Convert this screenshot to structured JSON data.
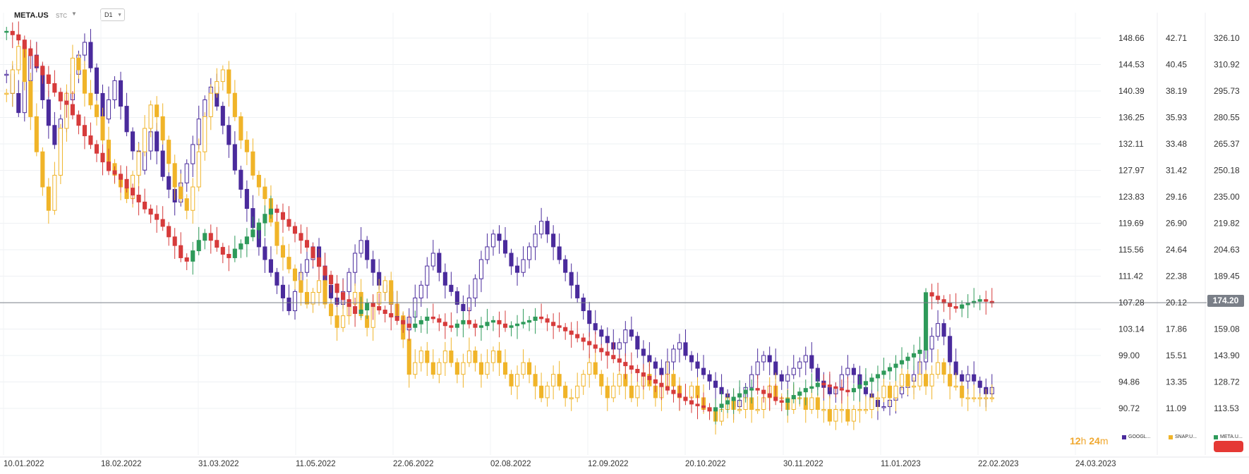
{
  "header": {
    "symbol": "META.US",
    "symbol_type": "STC",
    "timeframe": "D1"
  },
  "chart_data": {
    "type": "candlestick",
    "x_ticks": [
      "10.01.2022",
      "18.02.2022",
      "31.03.2022",
      "11.05.2022",
      "22.06.2022",
      "02.08.2022",
      "12.09.2022",
      "20.10.2022",
      "30.11.2022",
      "11.01.2023",
      "22.02.2023",
      "24.03.2023"
    ],
    "axes": [
      {
        "series": "GOOGL",
        "ticks": [
          "148.66",
          "144.53",
          "140.39",
          "136.25",
          "132.11",
          "127.97",
          "123.83",
          "119.69",
          "115.56",
          "111.42",
          "107.28",
          "103.14",
          "99.00",
          "94.86",
          "90.72"
        ],
        "range": [
          88.65,
          150.73
        ]
      },
      {
        "series": "SNAP",
        "ticks": [
          "42.71",
          "40.45",
          "38.19",
          "35.93",
          "33.48",
          "31.42",
          "29.16",
          "26.90",
          "24.64",
          "22.38",
          "20.12",
          "17.86",
          "15.51",
          "13.35",
          "11.09"
        ],
        "range": [
          9.96,
          43.84
        ]
      },
      {
        "series": "META",
        "ticks": [
          "326.10",
          "310.92",
          "295.73",
          "280.55",
          "265.37",
          "250.18",
          "235.00",
          "219.82",
          "204.63",
          "189.45",
          "174.27",
          "159.08",
          "143.90",
          "128.72",
          "113.53"
        ],
        "range": [
          105.94,
          333.69
        ]
      }
    ],
    "current_price": "174.20",
    "legend": [
      {
        "label": "GOOGL...",
        "color": "#4a2b9c"
      },
      {
        "label": "SNAP.U...",
        "color": "#f0b429"
      },
      {
        "label": "META.U...",
        "color": "#2e9a5a"
      }
    ],
    "series": [
      {
        "name": "GOOGL",
        "color": "#4a2b9c",
        "close": [
          143,
          140,
          137,
          142,
          146,
          144,
          139,
          135,
          132,
          136,
          139,
          143,
          146,
          148,
          144,
          140,
          136,
          139,
          142,
          138,
          134,
          131,
          128,
          131,
          134,
          131,
          127,
          125,
          123,
          126,
          129,
          132,
          136,
          139,
          141,
          138,
          135,
          132,
          128,
          125,
          122,
          119,
          116,
          114,
          112,
          110,
          108,
          106,
          109,
          112,
          114,
          116,
          113,
          110,
          108,
          107,
          109,
          112,
          115,
          117,
          114,
          112,
          110,
          109,
          107,
          105,
          103,
          105,
          108,
          110,
          113,
          115,
          112,
          110,
          109,
          107,
          106,
          108,
          111,
          114,
          116,
          118,
          117,
          115,
          113,
          112,
          114,
          116,
          118,
          120,
          118,
          116,
          114,
          112,
          110,
          108,
          106,
          104,
          103,
          102,
          101,
          100,
          101,
          103,
          102,
          100,
          99,
          98,
          97,
          96,
          98,
          100,
          101,
          99,
          98,
          97,
          96,
          95,
          94,
          93,
          92,
          91,
          92,
          94,
          96,
          98,
          99,
          98,
          96,
          95,
          96,
          97,
          98,
          99,
          97,
          95,
          94,
          93,
          94,
          96,
          97,
          96,
          94,
          93,
          92,
          91,
          91,
          92,
          93,
          94,
          95,
          96,
          98,
          100,
          102,
          104,
          102,
          98,
          96,
          95,
          96,
          95,
          94,
          93,
          94
        ]
      },
      {
        "name": "SNAP",
        "color": "#f0b429",
        "close": [
          38,
          40,
          42,
          39,
          36,
          33,
          30,
          28,
          31,
          35,
          38,
          41,
          40,
          38,
          37,
          36,
          34,
          32,
          31,
          30,
          29,
          31,
          33,
          35,
          37,
          36,
          34,
          32,
          30,
          29,
          28,
          30,
          33,
          36,
          38,
          39,
          40,
          38,
          36,
          34,
          33,
          31,
          30,
          29,
          27,
          25,
          24,
          23,
          22,
          21,
          20,
          21,
          22,
          20,
          19,
          18,
          19,
          20,
          21,
          19,
          18,
          20,
          21,
          22,
          20,
          19,
          17,
          14,
          15,
          16,
          15,
          14,
          15,
          16,
          15,
          14,
          15,
          16,
          15,
          14,
          15,
          16,
          15,
          14,
          13,
          14,
          15,
          14,
          13,
          12,
          13,
          14,
          13,
          12,
          12,
          13,
          14,
          15,
          14,
          13,
          12,
          13,
          14,
          13,
          12,
          13,
          14,
          13,
          12,
          13,
          14,
          13,
          12,
          12,
          13,
          12,
          11,
          11,
          10,
          11,
          12,
          11,
          11,
          12,
          11,
          11,
          12,
          13,
          12,
          12,
          11,
          12,
          12,
          11,
          12,
          11,
          11,
          10,
          11,
          11,
          10,
          11,
          11,
          11,
          12,
          12,
          13,
          12,
          13,
          14,
          13,
          13,
          14,
          13,
          14,
          15,
          14,
          13,
          13,
          12,
          12,
          12,
          12,
          12,
          12
        ]
      },
      {
        "name": "META",
        "color": "#2e9a5a",
        "close": [
          330,
          328,
          325,
          320,
          316,
          310,
          305,
          300,
          295,
          290,
          288,
          282,
          276,
          270,
          265,
          260,
          255,
          250,
          248,
          245,
          240,
          236,
          232,
          228,
          225,
          222,
          218,
          212,
          207,
          200,
          198,
          204,
          210,
          214,
          210,
          206,
          202,
          200,
          205,
          208,
          212,
          216,
          220,
          225,
          228,
          226,
          222,
          218,
          214,
          210,
          206,
          200,
          195,
          190,
          185,
          180,
          176,
          172,
          168,
          170,
          174,
          172,
          170,
          168,
          166,
          164,
          162,
          160,
          162,
          164,
          166,
          165,
          163,
          161,
          160,
          162,
          164,
          162,
          160,
          161,
          163,
          164,
          162,
          160,
          161,
          162,
          163,
          164,
          166,
          165,
          163,
          161,
          160,
          158,
          156,
          154,
          152,
          150,
          148,
          146,
          144,
          142,
          140,
          138,
          136,
          134,
          132,
          130,
          128,
          126,
          124,
          122,
          120,
          118,
          116,
          115,
          114,
          112,
          114,
          116,
          118,
          120,
          122,
          124,
          125,
          124,
          122,
          120,
          118,
          117,
          119,
          121,
          123,
          125,
          126,
          128,
          127,
          126,
          125,
          124,
          123,
          125,
          127,
          129,
          131,
          133,
          135,
          137,
          139,
          141,
          143,
          145,
          147,
          180,
          178,
          176,
          174,
          172,
          171,
          173,
          174,
          175,
          176,
          175,
          174
        ]
      }
    ]
  }
}
